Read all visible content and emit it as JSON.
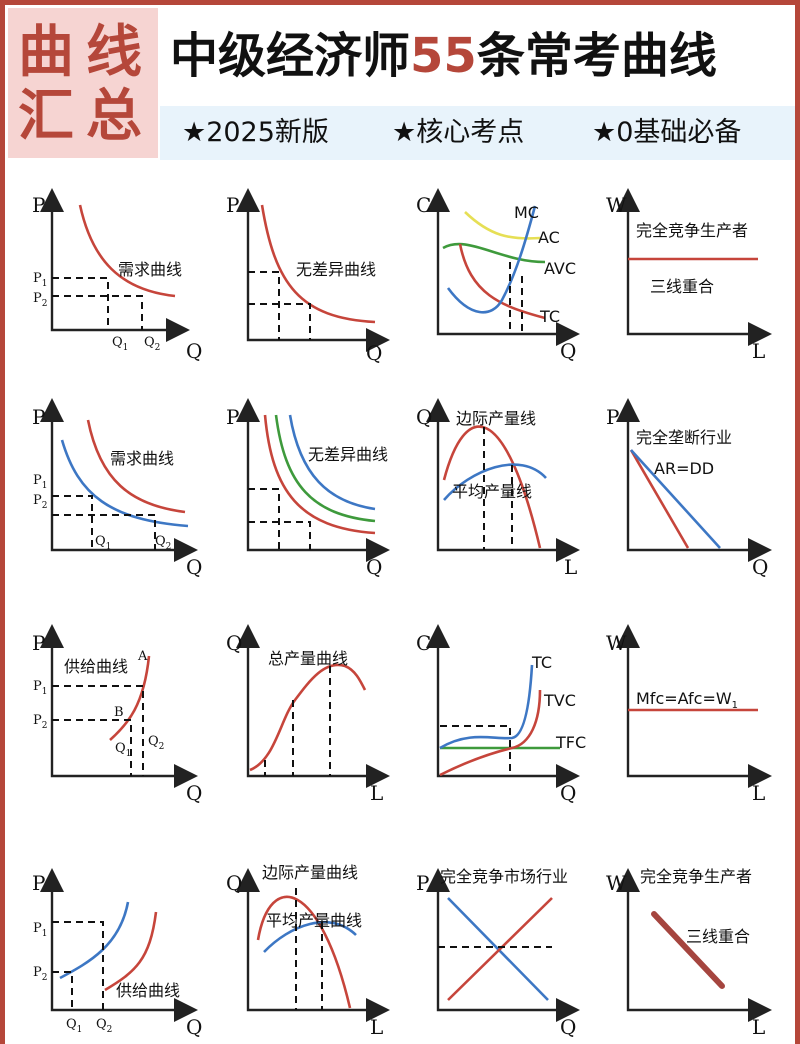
{
  "header": {
    "badge_chars": [
      "曲",
      "线",
      "汇",
      "总"
    ],
    "title_pre": "中级经济师",
    "title_num": "55",
    "title_post": "条常考曲线",
    "tags": [
      "★2025新版",
      "★核心考点",
      "★0基础必备"
    ]
  },
  "panels": {
    "p1": {
      "y": "P",
      "x": "Q",
      "t1": "P",
      "t1s": "1",
      "t2": "P",
      "t2s": "2",
      "q1": "Q",
      "q1s": "1",
      "q2": "Q",
      "q2s": "2",
      "label": "需求曲线"
    },
    "p2": {
      "y": "P",
      "x": "Q",
      "label": "无差异曲线"
    },
    "p3": {
      "y": "C",
      "x": "Q",
      "mc": "MC",
      "ac": "AC",
      "avc": "AVC",
      "tc": "TC"
    },
    "p4": {
      "y": "W",
      "x": "L",
      "l1": "完全竞争生产者",
      "l2": "三线重合"
    },
    "p5": {
      "y": "P",
      "x": "Q",
      "t1": "P",
      "t1s": "1",
      "t2": "P",
      "t2s": "2",
      "q1": "Q",
      "q1s": "1",
      "q2": "Q",
      "q2s": "2",
      "label": "需求曲线"
    },
    "p6": {
      "y": "P",
      "x": "Q",
      "label": "无差异曲线"
    },
    "p7": {
      "y": "Q",
      "x": "L",
      "l1": "边际产量线",
      "l2": "平均产量线"
    },
    "p8": {
      "y": "P",
      "x": "Q",
      "l1": "完全垄断行业",
      "l2": "AR=DD"
    },
    "p9": {
      "y": "P",
      "x": "Q",
      "label": "供给曲线",
      "a": "A",
      "b": "B",
      "t1": "P",
      "t1s": "1",
      "t2": "P",
      "t2s": "2",
      "q1": "Q",
      "q1s": "1",
      "q2": "Q",
      "q2s": "2"
    },
    "p10": {
      "y": "Q",
      "x": "L",
      "label": "总产量曲线"
    },
    "p11": {
      "y": "C",
      "x": "Q",
      "tc": "TC",
      "tvc": "TVC",
      "tfc": "TFC"
    },
    "p12": {
      "y": "W",
      "x": "L",
      "label": "Mfc=Afc=W",
      "sub": "1"
    },
    "p13": {
      "y": "P",
      "x": "Q",
      "t1": "P",
      "t1s": "1",
      "t2": "P",
      "t2s": "2",
      "q1": "Q",
      "q1s": "1",
      "q2": "Q",
      "q2s": "2",
      "label": "供给曲线"
    },
    "p14": {
      "y": "Q",
      "x": "L",
      "l1": "边际产量曲线",
      "l2": "平均产量曲线"
    },
    "p15": {
      "y": "P",
      "x": "Q",
      "label": "完全竞争市场行业"
    },
    "p16": {
      "y": "W",
      "x": "L",
      "l1": "完全竞争生产者",
      "l2": "三线重合"
    }
  },
  "colors": {
    "accent": "#b5473a",
    "red_curve": "#c6453b",
    "blue_curve": "#3d77c4",
    "green_curve": "#3e9a3c",
    "yellow_curve": "#e6df55"
  }
}
